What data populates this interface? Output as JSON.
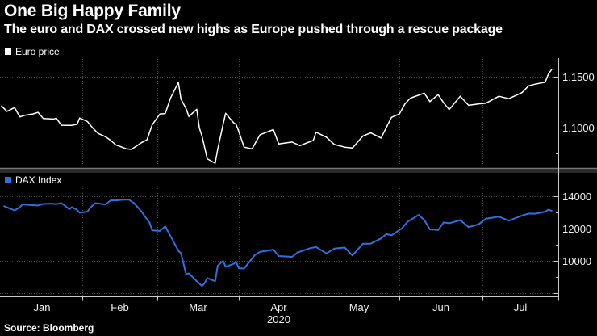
{
  "title": "One Big Happy Family",
  "subtitle": "The euro and DAX crossed new highs as Europe pushed through a rescue package",
  "source": "Source: Bloomberg",
  "colors": {
    "background": "#000000",
    "euro_line": "#ffffff",
    "dax_line": "#2f70e0",
    "grid": "#4a4a4a",
    "axis": "#c9c9c9",
    "tick_text": "#f0f0f0",
    "divider": "#2b2b2b",
    "divider_edge": "#777777"
  },
  "x_axis": {
    "month_labels": [
      "Jan",
      "Feb",
      "Mar",
      "Apr",
      "May",
      "Jun",
      "Jul"
    ],
    "year_label": "2020"
  },
  "chart_data": [
    {
      "type": "line",
      "name": "Euro price",
      "color": "#ffffff",
      "panel": "top",
      "ylim": [
        1.0627,
        1.1675
      ],
      "yticks": [
        {
          "value": 1.15,
          "label": "1.1500",
          "major": true,
          "grid": true
        },
        {
          "value": 1.125,
          "major": false
        },
        {
          "value": 1.1,
          "label": "1.1000",
          "major": true,
          "grid": true
        },
        {
          "value": 1.075,
          "major": false
        }
      ],
      "points": [
        [
          "1-1",
          1.1212
        ],
        [
          "1-3",
          1.116
        ],
        [
          "1-6",
          1.1196
        ],
        [
          "1-8",
          1.1106
        ],
        [
          "1-10",
          1.1122
        ],
        [
          "1-13",
          1.1134
        ],
        [
          "1-15",
          1.115
        ],
        [
          "1-17",
          1.109
        ],
        [
          "1-21",
          1.1084
        ],
        [
          "1-22",
          1.1093
        ],
        [
          "1-24",
          1.1023
        ],
        [
          "1-28",
          1.1022
        ],
        [
          "1-30",
          1.1033
        ],
        [
          "1-31",
          1.1094
        ],
        [
          "2-3",
          1.106
        ],
        [
          "2-5",
          1.0998
        ],
        [
          "2-7",
          1.0945
        ],
        [
          "2-10",
          1.091
        ],
        [
          "2-12",
          1.0874
        ],
        [
          "2-14",
          1.083
        ],
        [
          "2-18",
          1.0792
        ],
        [
          "2-20",
          1.0786
        ],
        [
          "2-24",
          1.0854
        ],
        [
          "2-26",
          1.088
        ],
        [
          "2-28",
          1.1026
        ],
        [
          "3-2",
          1.1134
        ],
        [
          "3-4",
          1.1138
        ],
        [
          "3-6",
          1.1288
        ],
        [
          "3-9",
          1.1444
        ],
        [
          "3-10",
          1.1281
        ],
        [
          "3-12",
          1.1184
        ],
        [
          "3-13",
          1.1109
        ],
        [
          "3-16",
          1.118
        ],
        [
          "3-17",
          1.0998
        ],
        [
          "3-18",
          1.0917
        ],
        [
          "3-20",
          1.0694
        ],
        [
          "3-23",
          1.065
        ],
        [
          "3-24",
          1.0789
        ],
        [
          "3-26",
          1.103
        ],
        [
          "3-27",
          1.1141
        ],
        [
          "3-30",
          1.1048
        ],
        [
          "3-31",
          1.1031
        ],
        [
          "4-1",
          1.0962
        ],
        [
          "4-3",
          1.0808
        ],
        [
          "4-6",
          1.0791
        ],
        [
          "4-9",
          1.093
        ],
        [
          "4-14",
          1.098
        ],
        [
          "4-16",
          1.084
        ],
        [
          "4-21",
          1.0858
        ],
        [
          "4-24",
          1.0823
        ],
        [
          "4-29",
          1.0875
        ],
        [
          "4-30",
          1.0955
        ],
        [
          "5-4",
          1.0906
        ],
        [
          "5-7",
          1.0834
        ],
        [
          "5-11",
          1.0808
        ],
        [
          "5-14",
          1.08
        ],
        [
          "5-18",
          1.0917
        ],
        [
          "5-21",
          1.0949
        ],
        [
          "5-25",
          1.0898
        ],
        [
          "5-27",
          1.1002
        ],
        [
          "5-29",
          1.1101
        ],
        [
          "6-1",
          1.1134
        ],
        [
          "6-3",
          1.1233
        ],
        [
          "6-5",
          1.129
        ],
        [
          "6-10",
          1.1339
        ],
        [
          "6-12",
          1.1256
        ],
        [
          "6-15",
          1.1324
        ],
        [
          "6-17",
          1.1244
        ],
        [
          "6-19",
          1.1177
        ],
        [
          "6-23",
          1.1308
        ],
        [
          "6-26",
          1.1219
        ],
        [
          "6-30",
          1.1234
        ],
        [
          "7-2",
          1.1239
        ],
        [
          "7-6",
          1.1308
        ],
        [
          "7-9",
          1.1284
        ],
        [
          "7-13",
          1.1344
        ],
        [
          "7-15",
          1.1411
        ],
        [
          "7-17",
          1.1427
        ],
        [
          "7-20",
          1.1446
        ],
        [
          "7-21",
          1.1526
        ],
        [
          "7-22",
          1.1571
        ]
      ]
    },
    {
      "type": "line",
      "name": "DAX Index",
      "color": "#2f70e0",
      "panel": "bottom",
      "ylim": [
        7800,
        14500
      ],
      "yticks": [
        {
          "value": 14000,
          "label": "14000",
          "major": true,
          "grid": true
        },
        {
          "value": 13000,
          "major": false
        },
        {
          "value": 12000,
          "label": "12000",
          "major": true,
          "grid": true
        },
        {
          "value": 11000,
          "major": false
        },
        {
          "value": 10000,
          "label": "10000",
          "major": true,
          "grid": true
        },
        {
          "value": 9000,
          "major": false
        },
        {
          "value": 8000,
          "major": true,
          "grid": true
        }
      ],
      "points": [
        [
          "1-2",
          13386
        ],
        [
          "1-6",
          13126
        ],
        [
          "1-8",
          13320
        ],
        [
          "1-9",
          13495
        ],
        [
          "1-13",
          13451
        ],
        [
          "1-15",
          13432
        ],
        [
          "1-17",
          13526
        ],
        [
          "1-20",
          13546
        ],
        [
          "1-22",
          13515
        ],
        [
          "1-24",
          13577
        ],
        [
          "1-27",
          13205
        ],
        [
          "1-28",
          13324
        ],
        [
          "1-30",
          13157
        ],
        [
          "1-31",
          12982
        ],
        [
          "2-3",
          13045
        ],
        [
          "2-4",
          13281
        ],
        [
          "2-6",
          13574
        ],
        [
          "2-10",
          13494
        ],
        [
          "2-12",
          13750
        ],
        [
          "2-14",
          13744
        ],
        [
          "2-17",
          13783
        ],
        [
          "2-19",
          13789
        ],
        [
          "2-21",
          13579
        ],
        [
          "2-24",
          13035
        ],
        [
          "2-25",
          12790
        ],
        [
          "2-27",
          12367
        ],
        [
          "2-28",
          11890
        ],
        [
          "3-2",
          11857
        ],
        [
          "3-4",
          12128
        ],
        [
          "3-6",
          11542
        ],
        [
          "3-9",
          10625
        ],
        [
          "3-10",
          10475
        ],
        [
          "3-12",
          9161
        ],
        [
          "3-13",
          9232
        ],
        [
          "3-16",
          8742
        ],
        [
          "3-18",
          8441
        ],
        [
          "3-19",
          8610
        ],
        [
          "3-20",
          8929
        ],
        [
          "3-23",
          8741
        ],
        [
          "3-24",
          9700
        ],
        [
          "3-26",
          10001
        ],
        [
          "3-27",
          9633
        ],
        [
          "3-30",
          9815
        ],
        [
          "3-31",
          9936
        ],
        [
          "4-1",
          9545
        ],
        [
          "4-3",
          9526
        ],
        [
          "4-7",
          10357
        ],
        [
          "4-9",
          10565
        ],
        [
          "4-14",
          10696
        ],
        [
          "4-16",
          10301
        ],
        [
          "4-21",
          10249
        ],
        [
          "4-23",
          10514
        ],
        [
          "4-28",
          10796
        ],
        [
          "4-30",
          10862
        ],
        [
          "5-4",
          10466
        ],
        [
          "5-7",
          10759
        ],
        [
          "5-11",
          10825
        ],
        [
          "5-14",
          10337
        ],
        [
          "5-18",
          11058
        ],
        [
          "5-21",
          11066
        ],
        [
          "5-25",
          11391
        ],
        [
          "5-27",
          11657
        ],
        [
          "5-29",
          11587
        ],
        [
          "6-2",
          12021
        ],
        [
          "6-4",
          12430
        ],
        [
          "6-8",
          12847
        ],
        [
          "6-10",
          12530
        ],
        [
          "6-12",
          11949
        ],
        [
          "6-15",
          11911
        ],
        [
          "6-17",
          12382
        ],
        [
          "6-19",
          12331
        ],
        [
          "6-23",
          12523
        ],
        [
          "6-26",
          12089
        ],
        [
          "6-29",
          12232
        ],
        [
          "6-30",
          12310
        ],
        [
          "7-2",
          12608
        ],
        [
          "7-6",
          12733
        ],
        [
          "7-9",
          12489
        ],
        [
          "7-13",
          12799
        ],
        [
          "7-15",
          12930
        ],
        [
          "7-17",
          12920
        ],
        [
          "7-20",
          13046
        ],
        [
          "7-21",
          13171
        ],
        [
          "7-22",
          13104
        ]
      ]
    }
  ]
}
